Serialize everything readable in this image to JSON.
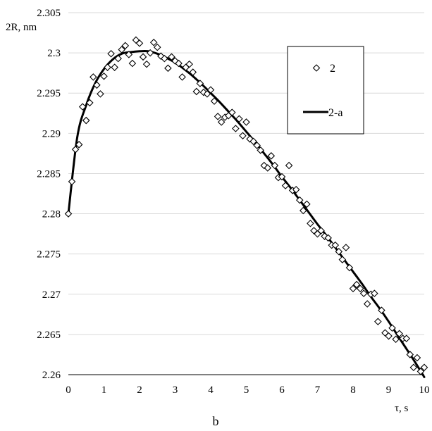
{
  "chart_data": {
    "type": "scatter",
    "xlabel": "τ, s",
    "ylabel": "2R, nm",
    "caption": "b",
    "xlim": [
      0,
      10
    ],
    "ylim": [
      2.26,
      2.305
    ],
    "x_ticks": [
      0,
      1,
      2,
      3,
      4,
      5,
      6,
      7,
      8,
      9,
      10
    ],
    "y_ticks": [
      2.26,
      2.265,
      2.27,
      2.275,
      2.28,
      2.285,
      2.29,
      2.295,
      2.3,
      2.305
    ],
    "x_tick_labels": [
      "0",
      "1",
      "2",
      "3",
      "4",
      "5",
      "6",
      "7",
      "8",
      "9",
      "10"
    ],
    "y_tick_labels": [
      "2.26",
      "2.265",
      "2.27",
      "2.275",
      "2.28",
      "2.285",
      "2.29",
      "2.295",
      "2.3",
      "2.305"
    ],
    "grid": "horizontal",
    "legend_position": "top-right",
    "series": [
      {
        "name": "2",
        "type": "scatter",
        "marker": "diamond-open",
        "color": "#000000",
        "x": [
          0.0,
          0.1,
          0.2,
          0.3,
          0.4,
          0.5,
          0.6,
          0.7,
          0.8,
          0.9,
          1.0,
          1.1,
          1.2,
          1.3,
          1.4,
          1.5,
          1.6,
          1.7,
          1.8,
          1.9,
          2.0,
          2.1,
          2.2,
          2.3,
          2.4,
          2.5,
          2.6,
          2.7,
          2.8,
          2.9,
          3.0,
          3.1,
          3.2,
          3.3,
          3.4,
          3.5,
          3.6,
          3.7,
          3.8,
          3.9,
          4.0,
          4.1,
          4.2,
          4.3,
          4.4,
          4.5,
          4.6,
          4.7,
          4.8,
          4.9,
          5.0,
          5.1,
          5.2,
          5.3,
          5.4,
          5.5,
          5.6,
          5.7,
          5.8,
          5.9,
          6.0,
          6.1,
          6.2,
          6.3,
          6.4,
          6.5,
          6.6,
          6.7,
          6.8,
          6.9,
          7.0,
          7.1,
          7.2,
          7.3,
          7.4,
          7.5,
          7.6,
          7.7,
          7.8,
          7.9,
          8.0,
          8.1,
          8.2,
          8.3,
          8.4,
          8.5,
          8.6,
          8.7,
          8.8,
          8.9,
          9.0,
          9.1,
          9.2,
          9.3,
          9.4,
          9.5,
          9.6,
          9.7,
          9.8,
          9.9,
          10.0
        ],
        "y": [
          2.28,
          2.284,
          2.288,
          2.2886,
          2.2933,
          2.2916,
          2.2938,
          2.297,
          2.296,
          2.2949,
          2.2971,
          2.2982,
          2.2999,
          2.2982,
          2.2993,
          2.3004,
          2.3009,
          2.2998,
          2.2987,
          2.3016,
          2.3012,
          2.2995,
          2.2986,
          2.3,
          2.3013,
          2.3007,
          2.2996,
          2.2993,
          2.2981,
          2.2995,
          2.299,
          2.2987,
          2.297,
          2.2982,
          2.2986,
          2.2976,
          2.2952,
          2.2962,
          2.2951,
          2.2949,
          2.2954,
          2.294,
          2.2921,
          2.2914,
          2.292,
          2.2922,
          2.2926,
          2.2906,
          2.2918,
          2.2897,
          2.2914,
          2.2893,
          2.289,
          2.2885,
          2.2879,
          2.286,
          2.2857,
          2.2872,
          2.286,
          2.2845,
          2.2846,
          2.2835,
          2.286,
          2.2829,
          2.283,
          2.2817,
          2.2804,
          2.2812,
          2.2788,
          2.2779,
          2.2775,
          2.2779,
          2.2772,
          2.277,
          2.2761,
          2.2761,
          2.2753,
          2.2743,
          2.2758,
          2.2733,
          2.2707,
          2.2712,
          2.2707,
          2.2701,
          2.2688,
          2.27,
          2.2701,
          2.2666,
          2.268,
          2.2652,
          2.2648,
          2.2658,
          2.2644,
          2.2651,
          2.2645,
          2.2645,
          2.2625,
          2.2609,
          2.2621,
          2.2604,
          2.2609
        ]
      },
      {
        "name": "2-a",
        "type": "line",
        "color": "#000000",
        "x": [
          0.0,
          0.25,
          0.5,
          0.75,
          1.0,
          1.25,
          1.5,
          1.75,
          2.0,
          2.25,
          2.5,
          2.75,
          3.0,
          3.25,
          3.5,
          3.75,
          4.0,
          4.25,
          4.5,
          4.75,
          5.0,
          5.25,
          5.5,
          5.75,
          6.0,
          6.25,
          6.5,
          6.75,
          7.0,
          7.25,
          7.5,
          7.75,
          8.0,
          8.25,
          8.5,
          8.75,
          9.0,
          9.25,
          9.5,
          9.75,
          10.0
        ],
        "y": [
          2.28,
          2.2895,
          2.2935,
          2.2962,
          2.298,
          2.2992,
          2.2999,
          2.3001,
          2.3002,
          2.3002,
          2.2999,
          2.2994,
          2.2988,
          2.298,
          2.2971,
          2.2961,
          2.295,
          2.2939,
          2.2927,
          2.2915,
          2.2902,
          2.2889,
          2.2875,
          2.2861,
          2.2846,
          2.2832,
          2.2817,
          2.2802,
          2.2787,
          2.2773,
          2.2758,
          2.2743,
          2.2728,
          2.2713,
          2.2697,
          2.2682,
          2.2666,
          2.2649,
          2.2632,
          2.2615,
          2.2597
        ]
      }
    ]
  }
}
